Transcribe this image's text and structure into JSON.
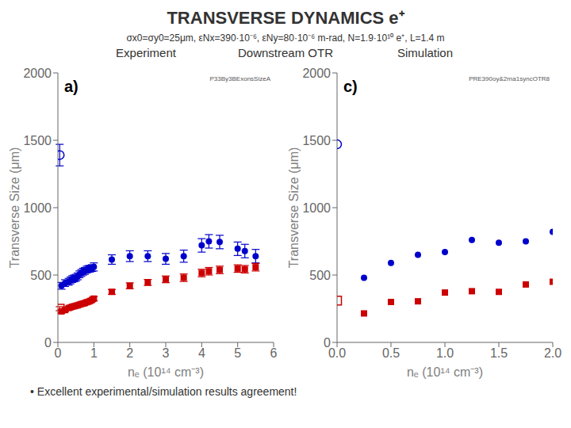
{
  "title": "TRANSVERSE DYNAMICS e⁺",
  "subtitle": "σx0=σy0=25μm,  εNx=390·10⁻⁶,  εNy=80·10⁻⁶ m-rad,  N=1.9·10¹⁰ e⁺,  L=1.4 m",
  "annotations": [
    "Downstream OTR",
    "• Excellent experimental/simulation results agreement!"
  ],
  "chart_data": [
    {
      "type": "scatter",
      "title": "Experiment",
      "x_label": "nₑ (10¹⁴ cm⁻³)",
      "y_label": "Transverse Size (μm)",
      "xlim": [
        0,
        6
      ],
      "ylim": [
        0,
        2000
      ],
      "xticks": [
        0,
        1,
        2,
        3,
        4,
        5,
        6
      ],
      "yticks": [
        0,
        500,
        1000,
        1500,
        2000
      ],
      "grid": false,
      "annotations": [
        "a)",
        "P33By3BExonsSizeA"
      ],
      "series": [
        {
          "color": "#0000CC",
          "marker": "circle-open",
          "x": [
            0.05
          ],
          "values": [
            1390
          ],
          "errors": [
            80
          ]
        },
        {
          "color": "#0000CC",
          "marker": "circle",
          "x": [
            0.1,
            0.2,
            0.3,
            0.35,
            0.4,
            0.45,
            0.5,
            0.55,
            0.6,
            0.65,
            0.7,
            0.75,
            0.8,
            0.85,
            0.9,
            0.95,
            1.0,
            1.5,
            2.0,
            2.5,
            3.0,
            3.5,
            4.0,
            4.2,
            4.5,
            5.0,
            5.2,
            5.5
          ],
          "values": [
            420,
            440,
            450,
            460,
            470,
            475,
            480,
            490,
            505,
            515,
            525,
            530,
            540,
            545,
            548,
            552,
            560,
            615,
            640,
            640,
            620,
            640,
            720,
            750,
            745,
            695,
            678,
            640
          ],
          "errors": [
            25,
            25,
            25,
            25,
            25,
            25,
            25,
            25,
            25,
            25,
            25,
            25,
            25,
            25,
            25,
            25,
            30,
            35,
            40,
            40,
            40,
            45,
            50,
            50,
            50,
            50,
            50,
            50
          ]
        },
        {
          "color": "#CC0000",
          "marker": "square-open",
          "x": [
            0.05
          ],
          "values": [
            250
          ],
          "errors": [
            15
          ]
        },
        {
          "color": "#CC0000",
          "marker": "square",
          "x": [
            0.1,
            0.2,
            0.3,
            0.35,
            0.4,
            0.45,
            0.5,
            0.55,
            0.6,
            0.65,
            0.7,
            0.75,
            0.8,
            0.85,
            0.9,
            0.95,
            1.0,
            1.5,
            2.0,
            2.5,
            3.0,
            3.5,
            4.0,
            4.2,
            4.5,
            5.0,
            5.2,
            5.5
          ],
          "values": [
            230,
            240,
            255,
            260,
            265,
            268,
            272,
            275,
            280,
            285,
            288,
            292,
            298,
            302,
            308,
            315,
            325,
            375,
            420,
            445,
            468,
            480,
            515,
            528,
            538,
            548,
            543,
            558
          ],
          "errors": [
            12,
            12,
            12,
            12,
            12,
            12,
            12,
            12,
            12,
            12,
            12,
            12,
            12,
            12,
            12,
            12,
            15,
            18,
            22,
            22,
            25,
            28,
            28,
            28,
            28,
            28,
            28,
            28
          ]
        }
      ]
    },
    {
      "type": "scatter",
      "title": "Simulation",
      "x_label": "nₑ (10¹⁴ cm⁻³)",
      "y_label": "Transverse Size (μm)",
      "xlim": [
        0,
        2
      ],
      "ylim": [
        0,
        2000
      ],
      "xticks": [
        {
          "value": 0,
          "label": "0.0"
        },
        0.5,
        {
          "value": 1,
          "label": "1.0"
        },
        1.5,
        {
          "value": 2,
          "label": "2.0"
        }
      ],
      "yticks": [
        0,
        500,
        1000,
        1500,
        2000
      ],
      "grid": false,
      "annotations": [
        "c)",
        "PRE390oy&2rna1syncOTR8"
      ],
      "series": [
        {
          "color": "#0000CC",
          "marker": "circle-open",
          "x": [
            0.0
          ],
          "values": [
            1470
          ]
        },
        {
          "color": "#0000CC",
          "marker": "circle",
          "x": [
            0.25,
            0.5,
            0.75,
            1.0,
            1.25,
            1.5,
            1.75,
            2.0
          ],
          "values": [
            480,
            590,
            650,
            670,
            760,
            740,
            750,
            820
          ]
        },
        {
          "color": "#CC0000",
          "marker": "square-open",
          "x": [
            0.0
          ],
          "values": [
            310
          ]
        },
        {
          "color": "#CC0000",
          "marker": "square",
          "x": [
            0.25,
            0.5,
            0.75,
            1.0,
            1.25,
            1.5,
            1.75,
            2.0
          ],
          "values": [
            215,
            300,
            305,
            370,
            380,
            375,
            430,
            450
          ]
        }
      ]
    }
  ]
}
